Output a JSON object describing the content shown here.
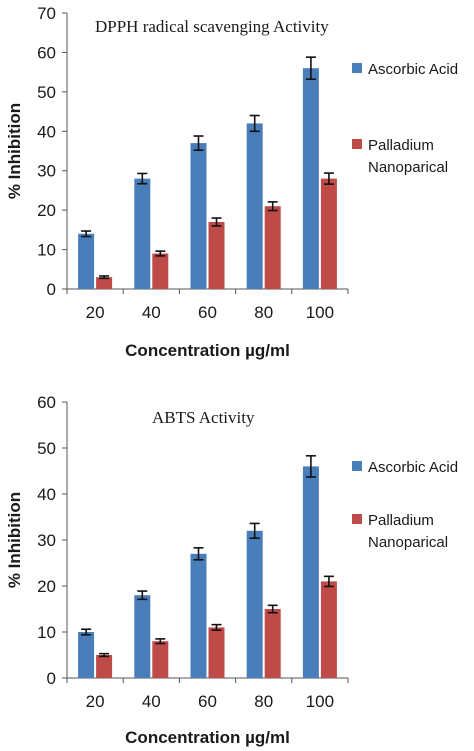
{
  "chart_data": [
    {
      "type": "bar",
      "title": "DPPH radical scavenging  Activity",
      "xlabel": "Concentration µg/ml",
      "ylabel": "% Inhibition",
      "categories": [
        "20",
        "40",
        "60",
        "80",
        "100"
      ],
      "ylim": [
        0,
        70
      ],
      "yticks": [
        0,
        10,
        20,
        30,
        40,
        50,
        60,
        70
      ],
      "grid": false,
      "legend_position": "right",
      "series": [
        {
          "name": "Ascorbic Acid",
          "color": "#4a7ebb",
          "values": [
            14,
            28,
            37,
            42,
            56
          ],
          "errors": [
            0.7,
            1.3,
            1.8,
            2.0,
            2.8
          ]
        },
        {
          "name": "Palladium Nanoparical",
          "color": "#be4b48",
          "values": [
            3,
            9,
            17,
            21,
            28
          ],
          "errors": [
            0.3,
            0.6,
            1.0,
            1.1,
            1.4
          ]
        }
      ]
    },
    {
      "type": "bar",
      "title": "ABTS Activity",
      "xlabel": "Concentration µg/ml",
      "ylabel": "% Inhibition",
      "categories": [
        "20",
        "40",
        "60",
        "80",
        "100"
      ],
      "ylim": [
        0,
        60
      ],
      "yticks": [
        0,
        10,
        20,
        30,
        40,
        50,
        60
      ],
      "grid": false,
      "legend_position": "right",
      "series": [
        {
          "name": "Ascorbic Acid",
          "color": "#4a7ebb",
          "values": [
            10,
            18,
            27,
            32,
            46
          ],
          "errors": [
            0.6,
            0.9,
            1.3,
            1.6,
            2.3
          ]
        },
        {
          "name": "Palladium Nanoparical",
          "color": "#be4b48",
          "values": [
            5,
            8,
            11,
            15,
            21
          ],
          "errors": [
            0.3,
            0.5,
            0.6,
            0.8,
            1.1
          ]
        }
      ]
    }
  ]
}
